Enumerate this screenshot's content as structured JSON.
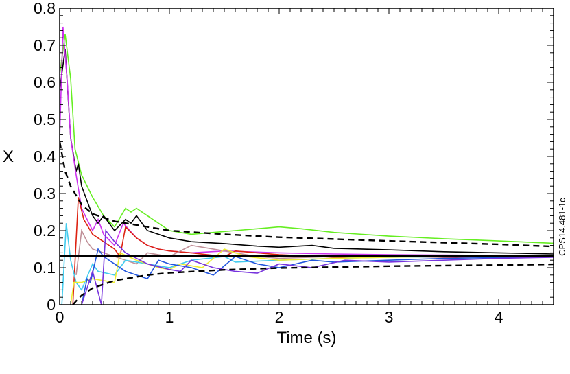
{
  "chart_data": {
    "type": "line",
    "title": "",
    "xlabel": "Time (s)",
    "ylabel": "X",
    "xlim": [
      0,
      4.5
    ],
    "ylim": [
      0,
      0.8
    ],
    "x_ticks": [
      0,
      1,
      2,
      3,
      4
    ],
    "x_tick_labels": [
      "0",
      "1",
      "2",
      "3",
      "4"
    ],
    "y_ticks": [
      0,
      0.1,
      0.2,
      0.3,
      0.4,
      0.5,
      0.6,
      0.7,
      0.8
    ],
    "y_tick_labels": [
      "0",
      "0.1",
      "0.2",
      "0.3",
      "0.4",
      "0.5",
      "0.6",
      "0.7",
      "0.8"
    ],
    "grid": false,
    "legend": "none",
    "side_note": "CPS14.481-1c",
    "reference_line": {
      "y": 0.132,
      "color": "#000000"
    },
    "dashed_bounds": [
      {
        "color": "#000000",
        "points": [
          [
            0.0,
            0.44
          ],
          [
            0.05,
            0.36
          ],
          [
            0.1,
            0.32
          ],
          [
            0.2,
            0.27
          ],
          [
            0.3,
            0.245
          ],
          [
            0.5,
            0.225
          ],
          [
            0.8,
            0.21
          ],
          [
            1.0,
            0.2
          ],
          [
            1.5,
            0.19
          ],
          [
            2.0,
            0.182
          ],
          [
            3.0,
            0.172
          ],
          [
            4.0,
            0.163
          ],
          [
            4.5,
            0.157
          ]
        ]
      },
      {
        "color": "#000000",
        "points": [
          [
            0.12,
            0.0
          ],
          [
            0.15,
            0.01
          ],
          [
            0.2,
            0.025
          ],
          [
            0.3,
            0.045
          ],
          [
            0.5,
            0.065
          ],
          [
            0.8,
            0.08
          ],
          [
            1.0,
            0.086
          ],
          [
            1.5,
            0.094
          ],
          [
            2.0,
            0.099
          ],
          [
            3.0,
            0.104
          ],
          [
            4.0,
            0.107
          ],
          [
            4.5,
            0.109
          ]
        ]
      }
    ],
    "series": [
      {
        "color": "#66ee22",
        "points": [
          [
            0.0,
            0.62
          ],
          [
            0.05,
            0.73
          ],
          [
            0.1,
            0.61
          ],
          [
            0.14,
            0.42
          ],
          [
            0.2,
            0.35
          ],
          [
            0.3,
            0.29
          ],
          [
            0.4,
            0.24
          ],
          [
            0.5,
            0.21
          ],
          [
            0.6,
            0.26
          ],
          [
            0.65,
            0.25
          ],
          [
            0.7,
            0.26
          ],
          [
            0.8,
            0.24
          ],
          [
            0.9,
            0.22
          ],
          [
            1.0,
            0.2
          ],
          [
            1.2,
            0.19
          ],
          [
            1.4,
            0.195
          ],
          [
            1.6,
            0.2
          ],
          [
            1.8,
            0.205
          ],
          [
            2.0,
            0.21
          ],
          [
            2.2,
            0.205
          ],
          [
            2.5,
            0.195
          ],
          [
            3.0,
            0.185
          ],
          [
            3.5,
            0.178
          ],
          [
            4.0,
            0.172
          ],
          [
            4.5,
            0.166
          ]
        ]
      },
      {
        "color": "#000000",
        "points": [
          [
            0.0,
            0.58
          ],
          [
            0.05,
            0.69
          ],
          [
            0.1,
            0.45
          ],
          [
            0.15,
            0.36
          ],
          [
            0.17,
            0.38
          ],
          [
            0.2,
            0.32
          ],
          [
            0.3,
            0.24
          ],
          [
            0.35,
            0.22
          ],
          [
            0.4,
            0.24
          ],
          [
            0.5,
            0.2
          ],
          [
            0.6,
            0.23
          ],
          [
            0.65,
            0.22
          ],
          [
            0.7,
            0.24
          ],
          [
            0.8,
            0.2
          ],
          [
            1.0,
            0.18
          ],
          [
            1.2,
            0.17
          ],
          [
            1.5,
            0.165
          ],
          [
            1.8,
            0.158
          ],
          [
            2.0,
            0.155
          ],
          [
            2.3,
            0.16
          ],
          [
            2.5,
            0.152
          ],
          [
            3.0,
            0.148
          ],
          [
            3.5,
            0.143
          ],
          [
            4.0,
            0.14
          ],
          [
            4.5,
            0.137
          ]
        ]
      },
      {
        "color": "#cc33ee",
        "points": [
          [
            0.0,
            0.45
          ],
          [
            0.03,
            0.75
          ],
          [
            0.07,
            0.6
          ],
          [
            0.1,
            0.45
          ],
          [
            0.15,
            0.35
          ],
          [
            0.2,
            0.26
          ],
          [
            0.3,
            0.2
          ],
          [
            0.35,
            0.23
          ],
          [
            0.4,
            0.19
          ],
          [
            0.5,
            0.16
          ],
          [
            0.58,
            0.22
          ],
          [
            0.7,
            0.18
          ],
          [
            0.8,
            0.16
          ],
          [
            0.9,
            0.15
          ],
          [
            1.0,
            0.145
          ],
          [
            1.2,
            0.14
          ],
          [
            1.5,
            0.145
          ],
          [
            2.0,
            0.14
          ],
          [
            2.5,
            0.137
          ],
          [
            3.0,
            0.135
          ],
          [
            3.5,
            0.134
          ],
          [
            4.0,
            0.133
          ],
          [
            4.5,
            0.133
          ]
        ]
      },
      {
        "color": "#dd2211",
        "points": [
          [
            0.12,
            0.0
          ],
          [
            0.17,
            0.29
          ],
          [
            0.22,
            0.23
          ],
          [
            0.3,
            0.19
          ],
          [
            0.4,
            0.17
          ],
          [
            0.5,
            0.15
          ],
          [
            0.55,
            0.13
          ],
          [
            0.6,
            0.21
          ],
          [
            0.7,
            0.18
          ],
          [
            0.8,
            0.16
          ],
          [
            0.9,
            0.15
          ],
          [
            1.0,
            0.145
          ],
          [
            1.2,
            0.14
          ],
          [
            1.5,
            0.13
          ],
          [
            1.6,
            0.145
          ],
          [
            1.8,
            0.14
          ],
          [
            2.0,
            0.135
          ],
          [
            2.5,
            0.128
          ],
          [
            3.0,
            0.13
          ],
          [
            3.5,
            0.128
          ],
          [
            4.0,
            0.13
          ],
          [
            4.5,
            0.132
          ]
        ]
      },
      {
        "color": "#c09098",
        "points": [
          [
            0.15,
            0.08
          ],
          [
            0.2,
            0.2
          ],
          [
            0.25,
            0.17
          ],
          [
            0.3,
            0.15
          ],
          [
            0.4,
            0.14
          ],
          [
            0.5,
            0.13
          ],
          [
            0.6,
            0.12
          ],
          [
            0.7,
            0.11
          ],
          [
            0.8,
            0.14
          ],
          [
            1.0,
            0.13
          ],
          [
            1.2,
            0.16
          ],
          [
            1.5,
            0.145
          ],
          [
            1.8,
            0.13
          ],
          [
            2.0,
            0.125
          ],
          [
            2.5,
            0.13
          ],
          [
            3.0,
            0.128
          ],
          [
            3.5,
            0.13
          ],
          [
            4.0,
            0.131
          ],
          [
            4.5,
            0.132
          ]
        ]
      },
      {
        "color": "#44ccee",
        "points": [
          [
            0.02,
            0.0
          ],
          [
            0.06,
            0.22
          ],
          [
            0.1,
            0.12
          ],
          [
            0.15,
            0.06
          ],
          [
            0.2,
            0.04
          ],
          [
            0.3,
            0.11
          ],
          [
            0.35,
            0.09
          ],
          [
            0.5,
            0.08
          ],
          [
            0.6,
            0.12
          ],
          [
            0.8,
            0.11
          ],
          [
            1.0,
            0.1
          ],
          [
            1.2,
            0.12
          ],
          [
            1.5,
            0.13
          ],
          [
            1.6,
            0.115
          ],
          [
            2.0,
            0.12
          ],
          [
            2.5,
            0.125
          ],
          [
            3.0,
            0.128
          ],
          [
            3.5,
            0.129
          ],
          [
            4.0,
            0.131
          ],
          [
            4.5,
            0.132
          ]
        ]
      },
      {
        "color": "#eeee33",
        "points": [
          [
            0.1,
            0.0
          ],
          [
            0.13,
            0.06
          ],
          [
            0.2,
            0.06
          ],
          [
            0.3,
            0.07
          ],
          [
            0.4,
            0.065
          ],
          [
            0.5,
            0.06
          ],
          [
            0.55,
            0.14
          ],
          [
            0.7,
            0.12
          ],
          [
            0.9,
            0.1
          ],
          [
            1.0,
            0.095
          ],
          [
            1.1,
            0.11
          ],
          [
            1.3,
            0.1
          ],
          [
            1.5,
            0.15
          ],
          [
            1.7,
            0.13
          ],
          [
            2.0,
            0.12
          ],
          [
            2.5,
            0.125
          ],
          [
            3.0,
            0.128
          ],
          [
            3.5,
            0.13
          ],
          [
            4.0,
            0.13
          ],
          [
            4.5,
            0.132
          ]
        ]
      },
      {
        "color": "#2255dd",
        "points": [
          [
            0.2,
            0.0
          ],
          [
            0.25,
            0.07
          ],
          [
            0.28,
            0.06
          ],
          [
            0.35,
            0.15
          ],
          [
            0.4,
            0.13
          ],
          [
            0.5,
            0.11
          ],
          [
            0.6,
            0.09
          ],
          [
            0.7,
            0.08
          ],
          [
            0.8,
            0.07
          ],
          [
            0.9,
            0.12
          ],
          [
            1.0,
            0.11
          ],
          [
            1.2,
            0.1
          ],
          [
            1.4,
            0.08
          ],
          [
            1.6,
            0.13
          ],
          [
            1.8,
            0.11
          ],
          [
            2.0,
            0.1
          ],
          [
            2.3,
            0.12
          ],
          [
            2.5,
            0.115
          ],
          [
            3.0,
            0.12
          ],
          [
            3.5,
            0.125
          ],
          [
            4.0,
            0.127
          ],
          [
            4.5,
            0.13
          ]
        ]
      },
      {
        "color": "#7733dd",
        "points": [
          [
            0.2,
            0.0
          ],
          [
            0.3,
            0.09
          ],
          [
            0.38,
            0.0
          ],
          [
            0.42,
            0.2
          ],
          [
            0.5,
            0.17
          ],
          [
            0.6,
            0.14
          ],
          [
            0.8,
            0.11
          ],
          [
            1.0,
            0.095
          ],
          [
            1.1,
            0.09
          ],
          [
            1.2,
            0.12
          ],
          [
            1.4,
            0.1
          ],
          [
            1.6,
            0.09
          ],
          [
            1.8,
            0.085
          ],
          [
            2.0,
            0.11
          ],
          [
            2.3,
            0.1
          ],
          [
            2.6,
            0.12
          ],
          [
            3.0,
            0.115
          ],
          [
            3.5,
            0.12
          ],
          [
            4.0,
            0.125
          ],
          [
            4.5,
            0.128
          ]
        ]
      }
    ]
  }
}
